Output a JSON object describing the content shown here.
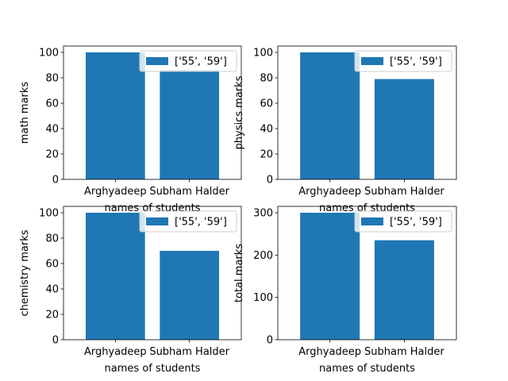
{
  "chart_data": [
    {
      "type": "bar",
      "categories": [
        "Arghyadeep",
        "Subham Halder"
      ],
      "series": [
        {
          "name": "['55', '59']",
          "values": [
            100,
            86
          ]
        }
      ],
      "xlabel": "names of students",
      "ylabel": "math marks",
      "ylim": [
        0,
        105
      ],
      "yticks": [
        0,
        20,
        40,
        60,
        80,
        100
      ],
      "legend": "upper right",
      "grid": false,
      "color": "#1f77b4"
    },
    {
      "type": "bar",
      "categories": [
        "Arghyadeep",
        "Subham Halder"
      ],
      "series": [
        {
          "name": "['55', '59']",
          "values": [
            100,
            79
          ]
        }
      ],
      "xlabel": "names of students",
      "ylabel": "physics marks",
      "ylim": [
        0,
        105
      ],
      "yticks": [
        0,
        20,
        40,
        60,
        80,
        100
      ],
      "legend": "upper right",
      "grid": false,
      "color": "#1f77b4"
    },
    {
      "type": "bar",
      "categories": [
        "Arghyadeep",
        "Subham Halder"
      ],
      "series": [
        {
          "name": "['55', '59']",
          "values": [
            100,
            70
          ]
        }
      ],
      "xlabel": "names of students",
      "ylabel": "chemistry marks",
      "ylim": [
        0,
        105
      ],
      "yticks": [
        0,
        20,
        40,
        60,
        80,
        100
      ],
      "legend": "upper right",
      "grid": false,
      "color": "#1f77b4"
    },
    {
      "type": "bar",
      "categories": [
        "Arghyadeep",
        "Subham Halder"
      ],
      "series": [
        {
          "name": "['55', '59']",
          "values": [
            300,
            235
          ]
        }
      ],
      "xlabel": "names of students",
      "ylabel": "total marks",
      "ylim": [
        0,
        315
      ],
      "yticks": [
        0,
        100,
        200,
        300
      ],
      "legend": "upper right",
      "grid": false,
      "color": "#1f77b4"
    }
  ]
}
